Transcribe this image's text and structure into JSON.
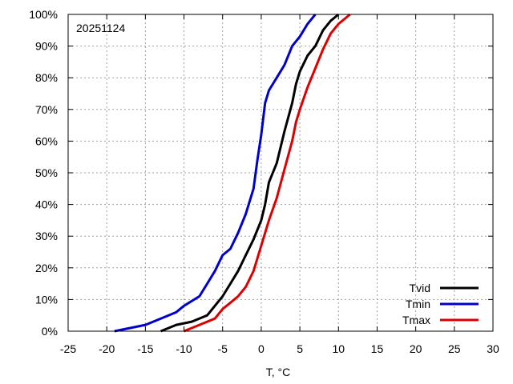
{
  "chart_data": {
    "type": "line",
    "title": "",
    "annotation": "20251124",
    "xlabel": "T, °C",
    "ylabel": "",
    "xlim": [
      -25,
      30
    ],
    "ylim": [
      0,
      100
    ],
    "x_ticks": [
      -25,
      -20,
      -15,
      -10,
      -5,
      0,
      5,
      10,
      15,
      20,
      25,
      30
    ],
    "x_tick_labels": [
      "-25",
      "-20",
      "-15",
      "-10",
      "-5",
      "0",
      "5",
      "10",
      "15",
      "20",
      "25",
      "30"
    ],
    "y_ticks": [
      0,
      10,
      20,
      30,
      40,
      50,
      60,
      70,
      80,
      90,
      100
    ],
    "y_tick_labels": [
      "0%",
      "10%",
      "20%",
      "30%",
      "40%",
      "50%",
      "60%",
      "70%",
      "80%",
      "90%",
      "100%"
    ],
    "grid": true,
    "legend_position": "bottom-right",
    "series": [
      {
        "name": "Tvid",
        "color": "#000000",
        "x": [
          -13,
          -11,
          -9,
          -7,
          -6,
          -5,
          -4,
          -3,
          -2,
          -1,
          0,
          0.5,
          1,
          2,
          2.5,
          3,
          4,
          4.5,
          5,
          6,
          7,
          8,
          9,
          10
        ],
        "y": [
          0,
          2,
          3,
          5,
          8,
          11,
          15,
          19,
          24,
          29,
          35,
          40,
          47,
          53,
          58,
          63,
          72,
          78,
          82,
          87,
          90,
          95,
          98,
          100
        ]
      },
      {
        "name": "Tmin",
        "color": "#0000cc",
        "x": [
          -19,
          -15,
          -13,
          -11,
          -10,
          -8,
          -7,
          -6,
          -5,
          -4,
          -3,
          -2,
          -1,
          -0.5,
          0,
          0.5,
          1,
          2,
          3,
          4,
          5,
          6,
          7
        ],
        "y": [
          0,
          2,
          4,
          6,
          8,
          11,
          15,
          19,
          24,
          26,
          31,
          37,
          45,
          54,
          62,
          72,
          76,
          80,
          84,
          90,
          93,
          97,
          100
        ]
      },
      {
        "name": "Tmax",
        "color": "#dd0000",
        "x": [
          -10,
          -8,
          -6,
          -5,
          -4,
          -3,
          -2,
          -1,
          0,
          1,
          2,
          3,
          4,
          4.5,
          5,
          6,
          7,
          8,
          9,
          10,
          11.5
        ],
        "y": [
          0,
          2,
          4,
          7,
          9,
          11,
          14,
          19,
          27,
          35,
          42,
          51,
          60,
          66,
          70,
          77,
          83,
          89,
          94,
          97,
          100
        ]
      }
    ]
  }
}
